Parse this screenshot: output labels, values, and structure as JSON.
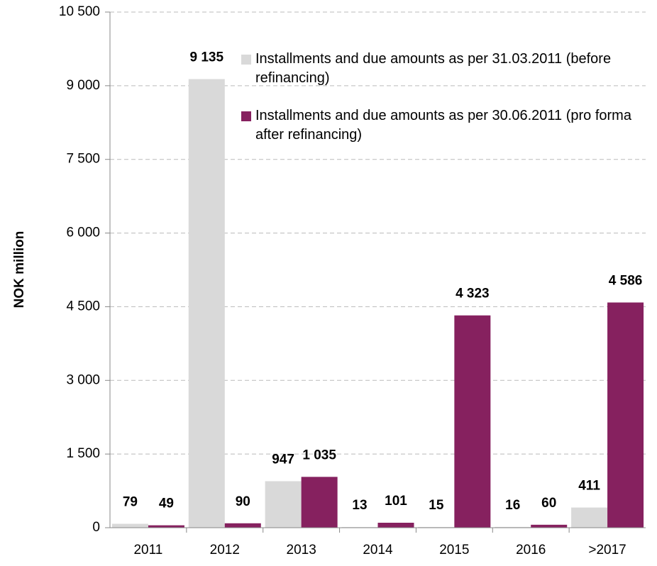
{
  "chart_data": {
    "type": "bar",
    "y_label": "NOK million",
    "categories": [
      "2011",
      "2012",
      "2013",
      "2014",
      "2015",
      "2016",
      ">2017"
    ],
    "series": [
      {
        "name": "Installments and due amounts as per 31.03.2011 (before refinancing)",
        "color": "#d9d9d9",
        "values": [
          79,
          9135,
          947,
          13,
          15,
          16,
          411
        ],
        "value_labels": [
          "79",
          "9 135",
          "947",
          "13",
          "15",
          "16",
          "411"
        ]
      },
      {
        "name": "Installments and due amounts as per 30.06.2011 (pro forma after refinancing)",
        "color": "#86215f",
        "values": [
          49,
          90,
          1035,
          101,
          4323,
          60,
          4586
        ],
        "value_labels": [
          "49",
          "90",
          "1 035",
          "101",
          "4 323",
          "60",
          "4 586"
        ]
      }
    ],
    "ylim": [
      0,
      10500
    ],
    "yticks": [
      0,
      {
        "value": 1500,
        "label": "1 500"
      },
      {
        "value": 3000,
        "label": "3 000"
      },
      {
        "value": 4500,
        "label": "4 500"
      },
      {
        "value": 6000,
        "label": "6 000"
      },
      {
        "value": 7500,
        "label": "7 500"
      },
      {
        "value": 9000,
        "label": "9 000"
      },
      {
        "value": 10500,
        "label": "10 500"
      }
    ],
    "grid": true,
    "legend": "top"
  }
}
